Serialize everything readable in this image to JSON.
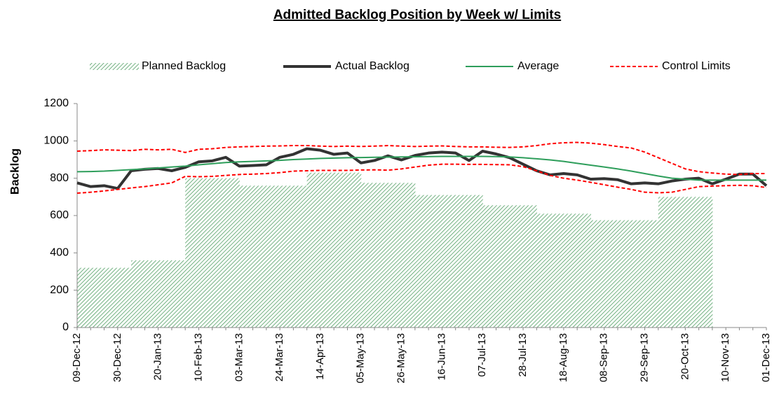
{
  "chart_data": {
    "type": "line",
    "title": "Admitted Backlog Position by Week w/ Limits",
    "y_label": "Backlog",
    "categories": [
      "09-Dec-12",
      null,
      null,
      "30-Dec-12",
      null,
      null,
      "20-Jan-13",
      null,
      null,
      "10-Feb-13",
      null,
      null,
      "03-Mar-13",
      null,
      null,
      "24-Mar-13",
      null,
      null,
      "14-Apr-13",
      null,
      null,
      "05-May-13",
      null,
      null,
      "26-May-13",
      null,
      null,
      "16-Jun-13",
      null,
      null,
      "07-Jul-13",
      null,
      null,
      "28-Jul-13",
      null,
      null,
      "18-Aug-13",
      null,
      null,
      "08-Sep-13",
      null,
      null,
      "29-Sep-13",
      null,
      null,
      "20-Oct-13",
      null,
      null,
      "10-Nov-13",
      null,
      null,
      "01-Dec-13"
    ],
    "ylim": [
      0,
      1200
    ],
    "yticks": [
      0,
      200,
      400,
      600,
      800,
      1000,
      1200
    ],
    "series": [
      {
        "name": "Planned Backlog",
        "kind": "area",
        "color": "#4f9e62",
        "values": [
          320,
          320,
          320,
          320,
          360,
          360,
          360,
          360,
          800,
          800,
          800,
          800,
          760,
          760,
          760,
          760,
          760,
          830,
          830,
          830,
          830,
          775,
          775,
          775,
          775,
          710,
          710,
          710,
          710,
          710,
          655,
          655,
          655,
          655,
          610,
          610,
          610,
          610,
          575,
          575,
          575,
          575,
          575,
          700,
          700,
          700,
          700,
          null,
          null,
          null,
          null,
          null
        ]
      },
      {
        "name": "Actual Backlog",
        "kind": "line",
        "color": "#333333",
        "values": [
          775,
          755,
          760,
          745,
          840,
          848,
          852,
          840,
          858,
          888,
          893,
          912,
          865,
          868,
          872,
          912,
          928,
          958,
          950,
          928,
          935,
          882,
          895,
          920,
          898,
          922,
          935,
          940,
          935,
          895,
          945,
          930,
          910,
          875,
          840,
          818,
          825,
          818,
          795,
          798,
          792,
          770,
          775,
          770,
          785,
          795,
          800,
          770,
          795,
          822,
          822,
          760
        ]
      },
      {
        "name": "Average",
        "kind": "line",
        "color": "#2e9e5b",
        "values": [
          835,
          836,
          838,
          842,
          846,
          850,
          855,
          860,
          865,
          872,
          878,
          884,
          888,
          890,
          893,
          896,
          900,
          903,
          906,
          908,
          910,
          911,
          912,
          913,
          914,
          915,
          916,
          917,
          917,
          917,
          917,
          916,
          914,
          910,
          904,
          898,
          890,
          880,
          870,
          860,
          850,
          838,
          825,
          812,
          800,
          795,
          790,
          790,
          790,
          790,
          790,
          790
        ]
      },
      {
        "name": "Control Limits",
        "kind": "dashed",
        "color": "#ff0000",
        "values": [
          945,
          948,
          952,
          950,
          948,
          955,
          952,
          955,
          938,
          955,
          958,
          965,
          968,
          970,
          972,
          973,
          975,
          975,
          972,
          970,
          972,
          970,
          972,
          975,
          972,
          970,
          972,
          973,
          970,
          968,
          968,
          966,
          965,
          968,
          975,
          985,
          990,
          992,
          988,
          980,
          970,
          962,
          940,
          910,
          880,
          850,
          835,
          828,
          822,
          820,
          825,
          825
        ]
      },
      {
        "kind": "dashed",
        "color": "#ff0000",
        "values": [
          720,
          725,
          732,
          740,
          748,
          755,
          765,
          775,
          810,
          808,
          810,
          815,
          820,
          822,
          825,
          830,
          838,
          840,
          842,
          842,
          842,
          844,
          845,
          843,
          850,
          860,
          870,
          875,
          875,
          874,
          874,
          873,
          872,
          862,
          840,
          815,
          800,
          790,
          778,
          765,
          752,
          740,
          725,
          722,
          725,
          740,
          755,
          758,
          760,
          762,
          760,
          750
        ]
      }
    ]
  }
}
